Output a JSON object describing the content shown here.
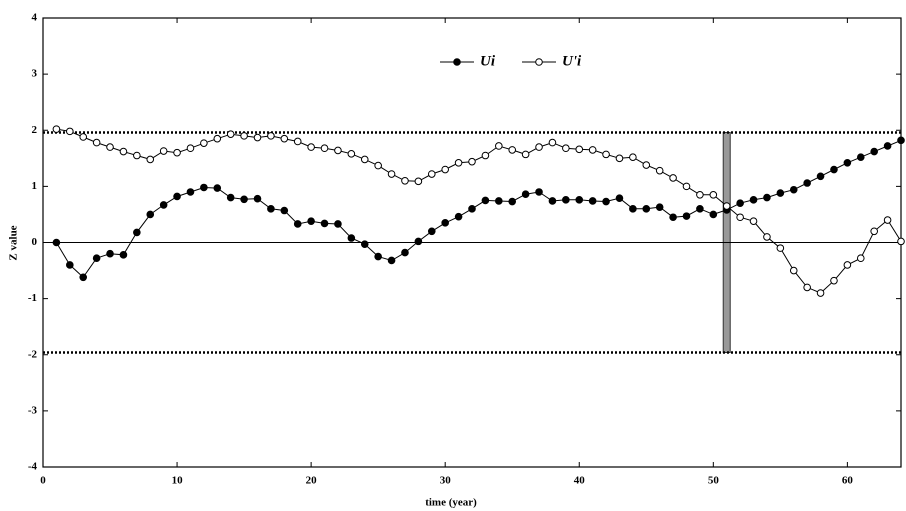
{
  "chart_data": {
    "type": "line",
    "x_label": "time (year)",
    "y_label": "Z value",
    "x": [
      1,
      2,
      3,
      4,
      5,
      6,
      7,
      8,
      9,
      10,
      11,
      12,
      13,
      14,
      15,
      16,
      17,
      18,
      19,
      20,
      21,
      22,
      23,
      24,
      25,
      26,
      27,
      28,
      29,
      30,
      31,
      32,
      33,
      34,
      35,
      36,
      37,
      38,
      39,
      40,
      41,
      42,
      43,
      44,
      45,
      46,
      47,
      48,
      49,
      50,
      51,
      52,
      53,
      54,
      55,
      56,
      57,
      58,
      59,
      60,
      61,
      62,
      63,
      64
    ],
    "series": [
      {
        "name": "Ui",
        "color": "#000000",
        "marker": "filled",
        "values": [
          0,
          -0.4,
          -0.62,
          -0.28,
          -0.2,
          -0.22,
          0.18,
          0.5,
          0.67,
          0.82,
          0.9,
          0.98,
          0.97,
          0.8,
          0.77,
          0.78,
          0.6,
          0.57,
          0.33,
          0.38,
          0.34,
          0.33,
          0.08,
          -0.03,
          -0.25,
          -0.32,
          -0.18,
          0.02,
          0.2,
          0.35,
          0.46,
          0.6,
          0.75,
          0.74,
          0.73,
          0.86,
          0.9,
          0.74,
          0.76,
          0.76,
          0.74,
          0.73,
          0.79,
          0.6,
          0.6,
          0.63,
          0.45,
          0.47,
          0.6,
          0.5,
          0.58,
          0.7,
          0.76,
          0.8,
          0.88,
          0.94,
          1.06,
          1.18,
          1.3,
          1.42,
          1.52,
          1.62,
          1.72,
          1.82
        ]
      },
      {
        "name": "U'i",
        "color": "#000000",
        "marker": "open",
        "values": [
          2.02,
          1.98,
          1.88,
          1.78,
          1.7,
          1.62,
          1.55,
          1.48,
          1.63,
          1.6,
          1.68,
          1.77,
          1.85,
          1.93,
          1.9,
          1.87,
          1.9,
          1.85,
          1.8,
          1.7,
          1.68,
          1.64,
          1.58,
          1.48,
          1.37,
          1.22,
          1.1,
          1.09,
          1.22,
          1.3,
          1.42,
          1.44,
          1.55,
          1.72,
          1.65,
          1.57,
          1.7,
          1.78,
          1.68,
          1.66,
          1.65,
          1.57,
          1.5,
          1.52,
          1.38,
          1.28,
          1.15,
          1.0,
          0.85,
          0.85,
          0.65,
          0.45,
          0.38,
          0.1,
          -0.1,
          -0.5,
          -0.8,
          -0.9,
          -0.68,
          -0.4,
          -0.28,
          0.2,
          0.4,
          0.02
        ]
      }
    ],
    "reference_lines": [
      1.96,
      -1.96
    ],
    "highlight_x": 51,
    "xlim": [
      0,
      64
    ],
    "xticks": [
      0,
      10,
      20,
      30,
      40,
      50,
      60
    ],
    "ylim": [
      -4,
      4
    ],
    "yticks": [
      -4,
      -3,
      -2,
      -1,
      0,
      1,
      2,
      3,
      4
    ]
  }
}
